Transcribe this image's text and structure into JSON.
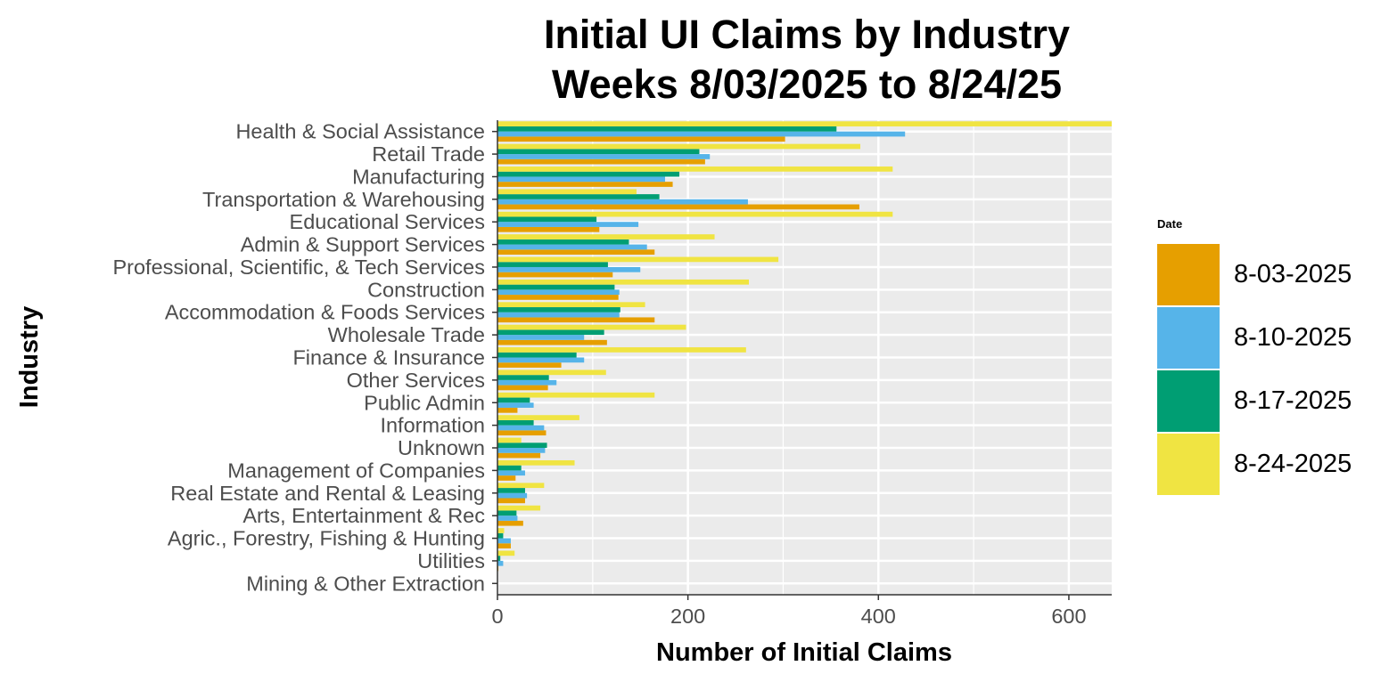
{
  "chart_data": {
    "type": "bar",
    "orientation": "horizontal",
    "title": [
      "Initial UI Claims by Industry",
      "Weeks  8/03/2025 to 8/24/25"
    ],
    "xlabel": "Number of Initial Claims",
    "ylabel": "Industry",
    "xlim": [
      0,
      645
    ],
    "xticks": [
      0,
      200,
      400,
      600
    ],
    "grid": true,
    "legend_title": "Date",
    "legend_position": "right",
    "categories": [
      "Health & Social Assistance",
      "Retail Trade",
      "Manufacturing",
      "Transportation & Warehousing",
      "Educational Services",
      "Admin & Support Services",
      "Professional, Scientific, & Tech Services",
      "Construction",
      "Accommodation & Foods Services",
      "Wholesale Trade",
      "Finance & Insurance",
      "Other Services",
      "Public Admin",
      "Information",
      "Unknown",
      "Management of Companies",
      "Real Estate and Rental & Leasing",
      "Arts, Entertainment & Rec",
      "Agric., Forestry, Fishing & Hunting",
      "Utilities",
      "Mining & Other Extraction"
    ],
    "series": [
      {
        "name": "8-03-2025",
        "color": "#E69F00",
        "values": [
          302,
          218,
          184,
          380,
          107,
          165,
          121,
          127,
          165,
          115,
          67,
          53,
          21,
          51,
          45,
          19,
          29,
          27,
          14,
          1,
          0
        ]
      },
      {
        "name": "8-10-2025",
        "color": "#56B4E9",
        "values": [
          428,
          223,
          176,
          263,
          148,
          157,
          150,
          128,
          128,
          91,
          91,
          62,
          38,
          49,
          50,
          29,
          31,
          21,
          14,
          6,
          0
        ]
      },
      {
        "name": "8-17-2025",
        "color": "#009E73",
        "values": [
          356,
          212,
          191,
          170,
          104,
          138,
          116,
          123,
          129,
          112,
          83,
          54,
          34,
          38,
          52,
          25,
          29,
          20,
          6,
          3,
          0
        ]
      },
      {
        "name": "8-24-2025",
        "color": "#F0E442",
        "values": [
          645,
          381,
          415,
          146,
          415,
          228,
          295,
          264,
          155,
          198,
          261,
          114,
          165,
          86,
          25,
          81,
          49,
          45,
          7,
          18,
          0
        ]
      }
    ]
  }
}
